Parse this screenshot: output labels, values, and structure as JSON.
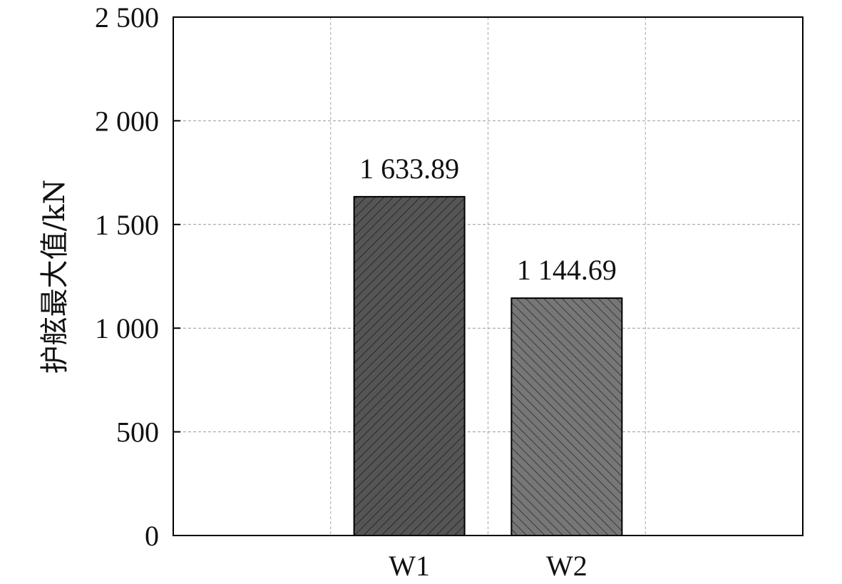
{
  "chart_data": {
    "type": "bar",
    "categories": [
      "W1",
      "W2"
    ],
    "values": [
      1633.89,
      1144.69
    ],
    "value_labels": [
      "1 633.89",
      "1 144.69"
    ],
    "title": "",
    "xlabel": "",
    "ylabel": "护舷最大值/kN",
    "ylim": [
      0,
      2500
    ],
    "yticks": [
      0,
      500,
      1000,
      1500,
      2000,
      2500
    ],
    "ytick_labels": [
      "0",
      "500",
      "1 000",
      "1 500",
      "2 000",
      "2 500"
    ],
    "grid": true,
    "x_gridlines": 4,
    "bar_colors": [
      "#555555",
      "#777777"
    ],
    "hatch": [
      "diagonal-up",
      "diagonal-down"
    ]
  }
}
